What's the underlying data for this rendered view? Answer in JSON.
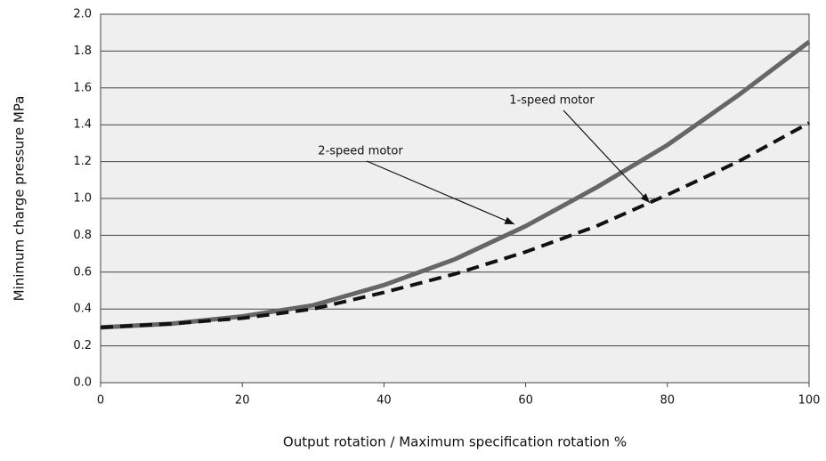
{
  "chart_data": {
    "type": "line",
    "x_label": "Output rotation / Maximum specification rotation  %",
    "y_label": "Minimum charge pressure  MPa",
    "x": [
      0,
      10,
      20,
      30,
      40,
      50,
      60,
      70,
      80,
      90,
      100
    ],
    "series": [
      {
        "name": "2-speed motor",
        "color": "#666666",
        "style": "solid",
        "values": [
          0.3,
          0.32,
          0.36,
          0.42,
          0.53,
          0.67,
          0.85,
          1.06,
          1.29,
          1.56,
          1.85
        ]
      },
      {
        "name": "1-speed motor",
        "color": "#111111",
        "style": "dashed",
        "values": [
          0.3,
          0.32,
          0.35,
          0.4,
          0.49,
          0.59,
          0.71,
          0.85,
          1.02,
          1.2,
          1.41
        ]
      }
    ],
    "xlim": [
      0,
      100
    ],
    "xticks": [
      0,
      20,
      40,
      60,
      80,
      100
    ],
    "ylim": [
      0,
      2
    ],
    "yticks": [
      {
        "value": 0,
        "label": "0.0"
      },
      0.2,
      0.4,
      0.6,
      0.8,
      {
        "value": 1,
        "label": "1.0"
      },
      1.2,
      1.4,
      1.6,
      1.8,
      {
        "value": 2,
        "label": "2.0"
      }
    ],
    "grid": true
  }
}
